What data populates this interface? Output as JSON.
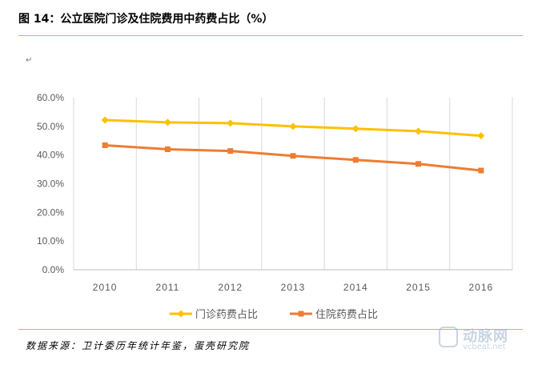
{
  "header": {
    "title": "图 14：公立医院门诊及住院费用中药费占比（%）",
    "return_mark": "↵"
  },
  "footer": {
    "source": "数据来源：卫计委历年统计年鉴，蛋壳研究院"
  },
  "watermark": {
    "cn": "动脉网",
    "en": "vcbeat.net"
  },
  "chart_data": {
    "type": "line",
    "title": "",
    "xlabel": "",
    "ylabel": "",
    "categories": [
      "2010",
      "2011",
      "2012",
      "2013",
      "2014",
      "2015",
      "2016"
    ],
    "ylim": [
      0,
      60
    ],
    "yticks": [
      "0.0%",
      "10.0%",
      "20.0%",
      "30.0%",
      "40.0%",
      "50.0%",
      "60.0%"
    ],
    "grid": "vertical",
    "legend_position": "bottom",
    "series": [
      {
        "name": "门诊药费占比",
        "color": "#ffc000",
        "marker": "diamond",
        "values": [
          52.2,
          51.4,
          51.1,
          50.0,
          49.2,
          48.3,
          46.7
        ]
      },
      {
        "name": "住院药费占比",
        "color": "#ed7d31",
        "marker": "square",
        "values": [
          43.4,
          42.0,
          41.4,
          39.7,
          38.3,
          36.9,
          34.6
        ]
      }
    ]
  }
}
